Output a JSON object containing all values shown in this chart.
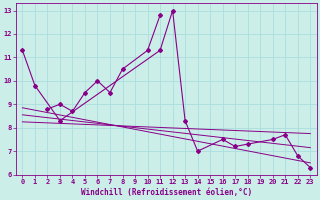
{
  "xlabel": "Windchill (Refroidissement éolien,°C)",
  "bg_color": "#cceee8",
  "grid_color": "#aadddd",
  "line_color": "#880088",
  "series1_x": [
    0,
    1,
    3,
    11,
    12,
    13,
    14,
    16,
    17,
    18,
    20,
    21,
    22,
    23
  ],
  "series1_y": [
    11.3,
    9.8,
    8.3,
    11.3,
    13.0,
    8.3,
    7.0,
    7.5,
    7.2,
    7.3,
    7.5,
    7.7,
    6.8,
    6.3
  ],
  "series2_x": [
    2,
    3,
    4,
    5,
    6,
    7,
    8,
    10,
    11
  ],
  "series2_y": [
    8.8,
    9.0,
    8.7,
    9.5,
    10.0,
    9.5,
    10.5,
    11.3,
    12.8
  ],
  "line3_x": [
    0,
    23
  ],
  "line3_y": [
    8.85,
    6.5
  ],
  "line4_x": [
    0,
    23
  ],
  "line4_y": [
    8.55,
    7.15
  ],
  "line5_x": [
    0,
    23
  ],
  "line5_y": [
    8.25,
    7.75
  ],
  "ylim": [
    6.0,
    13.3
  ],
  "xlim": [
    -0.5,
    23.5
  ],
  "yticks": [
    6,
    7,
    8,
    9,
    10,
    11,
    12,
    13
  ],
  "xticks": [
    0,
    1,
    2,
    3,
    4,
    5,
    6,
    7,
    8,
    9,
    10,
    11,
    12,
    13,
    14,
    15,
    16,
    17,
    18,
    19,
    20,
    21,
    22,
    23
  ],
  "tick_fontsize": 5.0,
  "xlabel_fontsize": 5.5
}
